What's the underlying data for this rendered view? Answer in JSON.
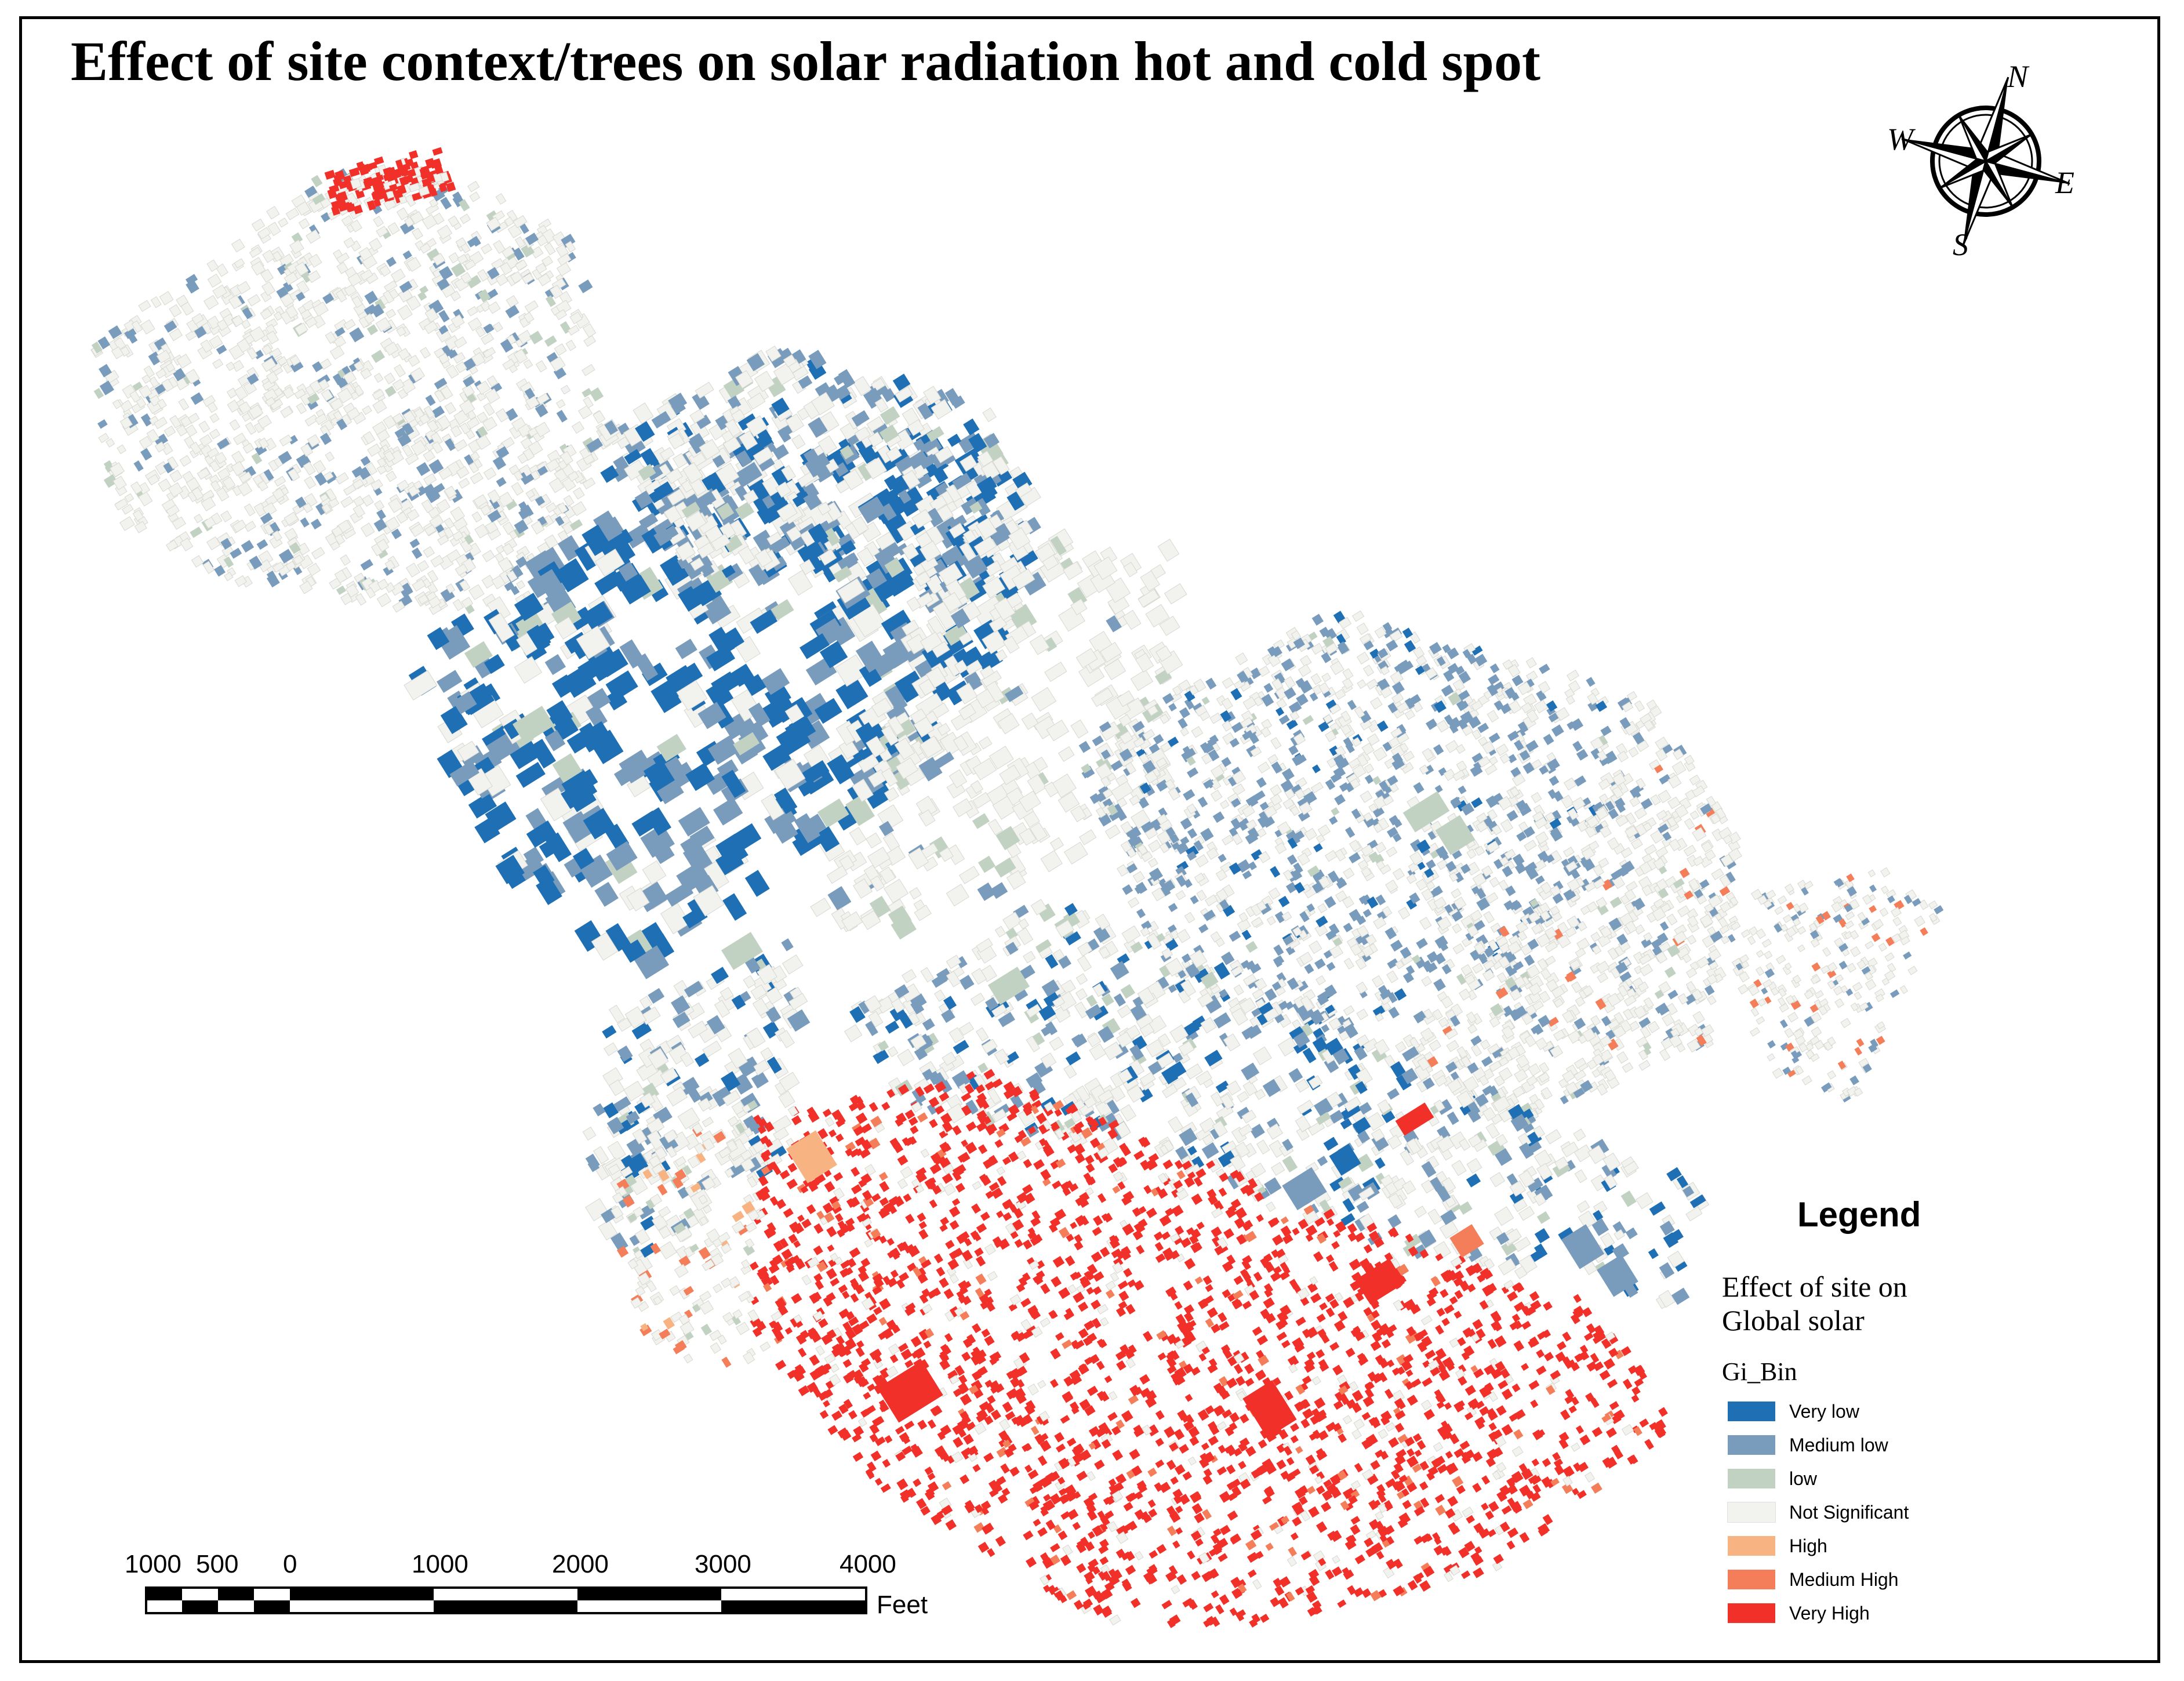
{
  "title": "Effect of site context/trees on solar radiation hot and cold spot",
  "compass": {
    "n": "N",
    "s": "S",
    "e": "E",
    "w": "W"
  },
  "legend": {
    "title": "Legend",
    "subtitle": "Effect of  site on Global solar",
    "field": "Gi_Bin",
    "classes": [
      {
        "key": "very_low",
        "label": "Very low",
        "color": "#1f6fb5"
      },
      {
        "key": "medium_low",
        "label": "Medium low",
        "color": "#7a9cbc"
      },
      {
        "key": "low",
        "label": "low",
        "color": "#c2d2c2"
      },
      {
        "key": "not_significant",
        "label": "Not Significant",
        "color": "#f2f2ee"
      },
      {
        "key": "high",
        "label": "High",
        "color": "#f7b482"
      },
      {
        "key": "medium_high",
        "label": "Medium High",
        "color": "#f47e5a"
      },
      {
        "key": "very_high",
        "label": "Very High",
        "color": "#f2302a"
      }
    ]
  },
  "scalebar": {
    "labels": [
      "1000",
      "500",
      "0",
      "1000",
      "2000",
      "3000",
      "4000"
    ],
    "unit": "Feet"
  },
  "colors": {
    "frame": "#000000",
    "background": "#ffffff"
  }
}
